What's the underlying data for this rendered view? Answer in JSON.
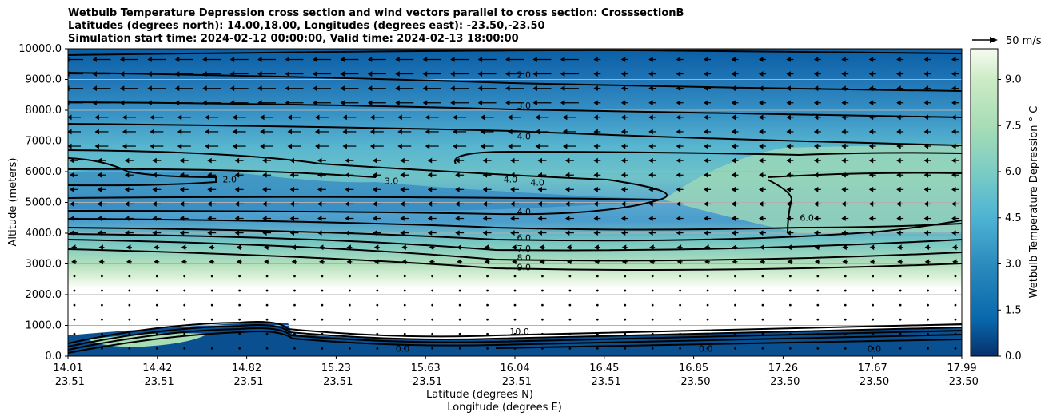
{
  "chart_data": {
    "type": "contour",
    "title_lines": [
      "Wetbulb Temperature Depression cross section and wind vectors parallel to cross section: CrosssectionB",
      "Latitudes (degrees north): 14.00,18.00, Longitudes (degrees east): -23.50,-23.50",
      "Simulation start time: 2024-02-12 00:00:00, Valid time: 2024-02-13 18:00:00"
    ],
    "xlabel_lat": "Latitude (degrees N)",
    "xlabel_lon": "Longitude (degrees E)",
    "ylabel": "Altitude (meters)",
    "x_ticks": [
      {
        "lat": "14.01",
        "lon": "-23.51"
      },
      {
        "lat": "14.42",
        "lon": "-23.51"
      },
      {
        "lat": "14.82",
        "lon": "-23.51"
      },
      {
        "lat": "15.23",
        "lon": "-23.51"
      },
      {
        "lat": "15.63",
        "lon": "-23.51"
      },
      {
        "lat": "16.04",
        "lon": "-23.51"
      },
      {
        "lat": "16.45",
        "lon": "-23.51"
      },
      {
        "lat": "16.85",
        "lon": "-23.50"
      },
      {
        "lat": "17.26",
        "lon": "-23.50"
      },
      {
        "lat": "17.67",
        "lon": "-23.50"
      },
      {
        "lat": "17.99",
        "lon": "-23.50"
      }
    ],
    "xlim": [
      14.01,
      17.99
    ],
    "y_ticks": [
      "0.0",
      "1000.0",
      "2000.0",
      "3000.0",
      "4000.0",
      "5000.0",
      "6000.0",
      "7000.0",
      "8000.0",
      "9000.0",
      "10000.0"
    ],
    "ylim": [
      0,
      10000
    ],
    "colorbar": {
      "label": "Wetbulb Temperature Depression ° C",
      "ticks": [
        "0.0",
        "1.5",
        "3.0",
        "4.5",
        "6.0",
        "7.5",
        "9.0"
      ],
      "range": [
        0,
        10
      ]
    },
    "quiver_key": "50 m/s",
    "contour_labels": [
      {
        "text": "2.0",
        "lat": 16.04,
        "alt": 9100
      },
      {
        "text": "3.0",
        "lat": 16.04,
        "alt": 8100
      },
      {
        "text": "4.0",
        "lat": 16.04,
        "alt": 7100
      },
      {
        "text": "4.0",
        "lat": 15.98,
        "alt": 5700
      },
      {
        "text": "4.0",
        "lat": 16.1,
        "alt": 5600
      },
      {
        "text": "4.0",
        "lat": 16.04,
        "alt": 4650
      },
      {
        "text": "6.0",
        "lat": 16.04,
        "alt": 3800
      },
      {
        "text": "7.0",
        "lat": 16.04,
        "alt": 3450
      },
      {
        "text": "8.0",
        "lat": 16.04,
        "alt": 3150
      },
      {
        "text": "9.0",
        "lat": 16.04,
        "alt": 2850
      },
      {
        "text": "2.0",
        "lat": 14.73,
        "alt": 5700
      },
      {
        "text": "3.0",
        "lat": 15.45,
        "alt": 5650
      },
      {
        "text": "6.0",
        "lat": 17.3,
        "alt": 4450
      },
      {
        "text": "10.0",
        "lat": 16.02,
        "alt": 750
      },
      {
        "text": "0.0",
        "lat": 15.5,
        "alt": 200
      },
      {
        "text": "0.0",
        "lat": 16.85,
        "alt": 200
      },
      {
        "text": "0.0",
        "lat": 17.6,
        "alt": 200
      }
    ]
  }
}
